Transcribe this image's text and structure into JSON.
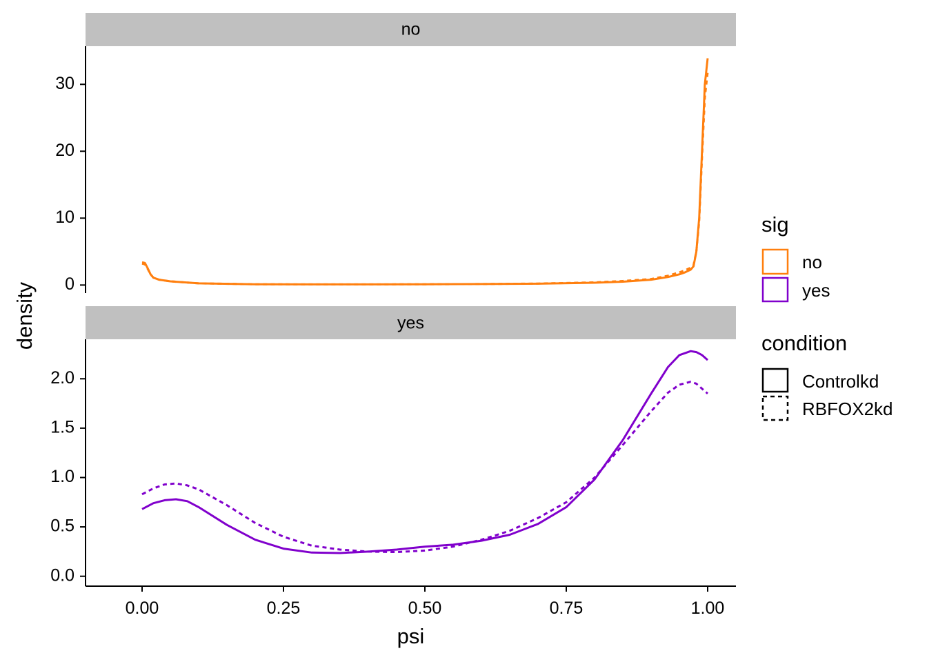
{
  "chart_data": {
    "type": "line",
    "chart_kind": "density (faceted)",
    "xlabel": "psi",
    "ylabel": "density",
    "xlim": [
      -0.1,
      1.05
    ],
    "x_ticks": [
      "0.00",
      "0.25",
      "0.50",
      "0.75",
      "1.00"
    ],
    "grid": false,
    "legend_position": "right",
    "facets": [
      {
        "label": "no",
        "ylim": [
          -1.2,
          35.7
        ],
        "y_ticks": [
          "0",
          "10",
          "20",
          "30"
        ],
        "color": "#FF7F0E",
        "series": [
          {
            "sig": "no",
            "condition": "Controlkd",
            "linetype": "solid",
            "points": [
              [
                0.0,
                3.4
              ],
              [
                0.005,
                3.3
              ],
              [
                0.01,
                2.5
              ],
              [
                0.015,
                1.6
              ],
              [
                0.02,
                1.1
              ],
              [
                0.03,
                0.8
              ],
              [
                0.05,
                0.55
              ],
              [
                0.1,
                0.25
              ],
              [
                0.2,
                0.12
              ],
              [
                0.3,
                0.1
              ],
              [
                0.4,
                0.1
              ],
              [
                0.5,
                0.12
              ],
              [
                0.6,
                0.15
              ],
              [
                0.7,
                0.2
              ],
              [
                0.8,
                0.35
              ],
              [
                0.85,
                0.5
              ],
              [
                0.9,
                0.8
              ],
              [
                0.93,
                1.2
              ],
              [
                0.95,
                1.6
              ],
              [
                0.96,
                1.9
              ],
              [
                0.97,
                2.3
              ],
              [
                0.975,
                2.8
              ],
              [
                0.98,
                5.0
              ],
              [
                0.985,
                10.0
              ],
              [
                0.99,
                20.0
              ],
              [
                0.995,
                30.0
              ],
              [
                1.0,
                33.9
              ]
            ]
          },
          {
            "sig": "no",
            "condition": "RBFOX2kd",
            "linetype": "dashed",
            "points": [
              [
                0.0,
                3.2
              ],
              [
                0.005,
                3.1
              ],
              [
                0.01,
                2.4
              ],
              [
                0.015,
                1.6
              ],
              [
                0.02,
                1.1
              ],
              [
                0.03,
                0.8
              ],
              [
                0.05,
                0.55
              ],
              [
                0.1,
                0.25
              ],
              [
                0.2,
                0.12
              ],
              [
                0.3,
                0.1
              ],
              [
                0.4,
                0.1
              ],
              [
                0.5,
                0.12
              ],
              [
                0.6,
                0.15
              ],
              [
                0.7,
                0.22
              ],
              [
                0.8,
                0.4
              ],
              [
                0.85,
                0.6
              ],
              [
                0.9,
                0.9
              ],
              [
                0.93,
                1.4
              ],
              [
                0.95,
                1.9
              ],
              [
                0.96,
                2.2
              ],
              [
                0.97,
                2.6
              ],
              [
                0.975,
                3.0
              ],
              [
                0.98,
                5.0
              ],
              [
                0.985,
                9.5
              ],
              [
                0.99,
                19.0
              ],
              [
                0.995,
                28.0
              ],
              [
                1.0,
                31.8
              ]
            ]
          }
        ]
      },
      {
        "label": "yes",
        "ylim": [
          -0.1,
          2.4
        ],
        "y_ticks": [
          "0.0",
          "0.5",
          "1.0",
          "1.5",
          "2.0"
        ],
        "color": "#8000CC",
        "series": [
          {
            "sig": "yes",
            "condition": "Controlkd",
            "linetype": "solid",
            "points": [
              [
                0.0,
                0.68
              ],
              [
                0.02,
                0.74
              ],
              [
                0.04,
                0.77
              ],
              [
                0.06,
                0.78
              ],
              [
                0.08,
                0.76
              ],
              [
                0.1,
                0.7
              ],
              [
                0.15,
                0.52
              ],
              [
                0.2,
                0.37
              ],
              [
                0.25,
                0.28
              ],
              [
                0.3,
                0.24
              ],
              [
                0.35,
                0.235
              ],
              [
                0.4,
                0.25
              ],
              [
                0.45,
                0.27
              ],
              [
                0.5,
                0.3
              ],
              [
                0.55,
                0.32
              ],
              [
                0.6,
                0.36
              ],
              [
                0.65,
                0.42
              ],
              [
                0.7,
                0.53
              ],
              [
                0.75,
                0.7
              ],
              [
                0.8,
                0.98
              ],
              [
                0.85,
                1.38
              ],
              [
                0.9,
                1.85
              ],
              [
                0.93,
                2.12
              ],
              [
                0.95,
                2.24
              ],
              [
                0.97,
                2.28
              ],
              [
                0.98,
                2.27
              ],
              [
                0.99,
                2.24
              ],
              [
                1.0,
                2.19
              ]
            ]
          },
          {
            "sig": "yes",
            "condition": "RBFOX2kd",
            "linetype": "dashed",
            "points": [
              [
                0.0,
                0.83
              ],
              [
                0.02,
                0.89
              ],
              [
                0.04,
                0.93
              ],
              [
                0.06,
                0.94
              ],
              [
                0.08,
                0.92
              ],
              [
                0.1,
                0.88
              ],
              [
                0.15,
                0.72
              ],
              [
                0.2,
                0.54
              ],
              [
                0.25,
                0.4
              ],
              [
                0.3,
                0.31
              ],
              [
                0.35,
                0.27
              ],
              [
                0.4,
                0.25
              ],
              [
                0.45,
                0.245
              ],
              [
                0.5,
                0.26
              ],
              [
                0.55,
                0.3
              ],
              [
                0.6,
                0.37
              ],
              [
                0.65,
                0.46
              ],
              [
                0.7,
                0.59
              ],
              [
                0.75,
                0.75
              ],
              [
                0.8,
                1.0
              ],
              [
                0.85,
                1.33
              ],
              [
                0.9,
                1.67
              ],
              [
                0.93,
                1.86
              ],
              [
                0.95,
                1.94
              ],
              [
                0.97,
                1.97
              ],
              [
                0.98,
                1.95
              ],
              [
                0.99,
                1.9
              ],
              [
                1.0,
                1.85
              ]
            ]
          }
        ]
      }
    ],
    "legend": {
      "sig": {
        "title": "sig",
        "items": [
          {
            "label": "no",
            "color": "#FF7F0E"
          },
          {
            "label": "yes",
            "color": "#8000CC"
          }
        ]
      },
      "condition": {
        "title": "condition",
        "items": [
          {
            "label": "Controlkd",
            "linetype": "solid"
          },
          {
            "label": "RBFOX2kd",
            "linetype": "dashed"
          }
        ]
      }
    }
  }
}
